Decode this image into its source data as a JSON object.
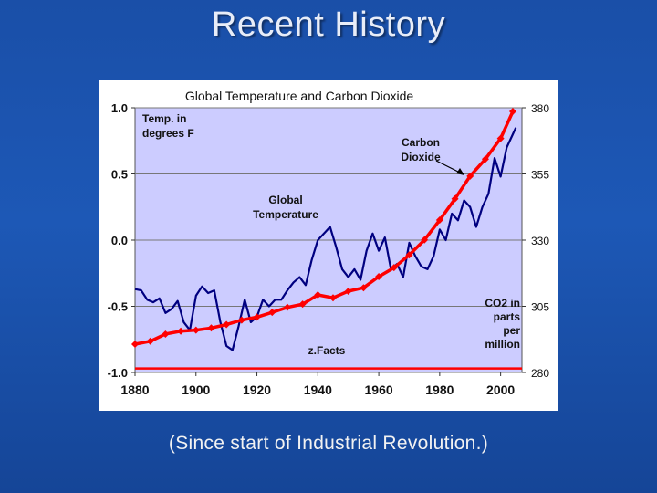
{
  "slide": {
    "title": "Recent History",
    "caption": "(Since start of Industrial Revolution.)"
  },
  "colors": {
    "background": "#1a4fa8",
    "plot_area": "#ccccff",
    "temperature_series": "#000080",
    "co2_series": "#ff0000",
    "reference_line": "#ff0000"
  },
  "chart_data": {
    "type": "line",
    "title": "Global Temperature and Carbon Dioxide",
    "x_ticks": [
      "1880",
      "1900",
      "1920",
      "1940",
      "1960",
      "1980",
      "2000"
    ],
    "y_left_ticks": [
      "1.0",
      "0.5",
      "0.0",
      "-0.5",
      "-1.0"
    ],
    "y_right_ticks": [
      "380",
      "355",
      "330",
      "305",
      "280"
    ],
    "xlim": [
      1880,
      2007
    ],
    "ylim_left": [
      -1.0,
      1.0
    ],
    "ylim_right": [
      280,
      380
    ],
    "grid": "horizontal",
    "reference_line_left_value": -0.97,
    "annotations": {
      "left_axis_unit": [
        "Temp. in",
        "degrees F"
      ],
      "co2_label": [
        "Carbon",
        "Dioxide"
      ],
      "temperature_label": [
        "Global",
        "Temperature"
      ],
      "right_axis_unit": [
        "CO2 in",
        "parts",
        "per",
        "million"
      ],
      "source": "z.Facts"
    },
    "series": [
      {
        "name": "Global Temperature",
        "axis": "left",
        "x": [
          1880,
          1882,
          1884,
          1886,
          1888,
          1890,
          1892,
          1894,
          1896,
          1898,
          1900,
          1902,
          1904,
          1906,
          1908,
          1910,
          1912,
          1914,
          1916,
          1918,
          1920,
          1922,
          1924,
          1926,
          1928,
          1930,
          1932,
          1934,
          1936,
          1938,
          1940,
          1942,
          1944,
          1946,
          1948,
          1950,
          1952,
          1954,
          1956,
          1958,
          1960,
          1962,
          1964,
          1966,
          1968,
          1970,
          1972,
          1974,
          1976,
          1978,
          1980,
          1982,
          1984,
          1986,
          1988,
          1990,
          1992,
          1994,
          1996,
          1998,
          2000,
          2002,
          2004,
          2005
        ],
        "values": [
          -0.37,
          -0.38,
          -0.45,
          -0.47,
          -0.44,
          -0.55,
          -0.52,
          -0.46,
          -0.62,
          -0.68,
          -0.42,
          -0.35,
          -0.4,
          -0.38,
          -0.62,
          -0.8,
          -0.83,
          -0.65,
          -0.45,
          -0.62,
          -0.58,
          -0.45,
          -0.5,
          -0.45,
          -0.45,
          -0.38,
          -0.32,
          -0.28,
          -0.34,
          -0.15,
          0.0,
          0.05,
          0.1,
          -0.05,
          -0.22,
          -0.28,
          -0.22,
          -0.3,
          -0.08,
          0.05,
          -0.08,
          0.02,
          -0.22,
          -0.18,
          -0.28,
          -0.02,
          -0.12,
          -0.2,
          -0.22,
          -0.12,
          0.08,
          0.0,
          0.2,
          0.15,
          0.3,
          0.25,
          0.1,
          0.25,
          0.35,
          0.62,
          0.48,
          0.7,
          0.8,
          0.85
        ]
      },
      {
        "name": "Carbon Dioxide",
        "axis": "right",
        "x": [
          1880,
          1885,
          1890,
          1895,
          1900,
          1905,
          1910,
          1915,
          1920,
          1925,
          1930,
          1935,
          1940,
          1945,
          1950,
          1955,
          1960,
          1965,
          1970,
          1975,
          1980,
          1985,
          1990,
          1995,
          2000,
          2004
        ],
        "values": [
          290.7,
          291.8,
          294.5,
          295.6,
          296,
          296.8,
          298.1,
          299.8,
          300.9,
          302.7,
          304.6,
          305.8,
          309.3,
          308.2,
          310.7,
          312,
          316.2,
          319.6,
          324.4,
          330.1,
          337.6,
          345.6,
          354.2,
          360.6,
          368.4,
          378.6
        ]
      }
    ]
  }
}
